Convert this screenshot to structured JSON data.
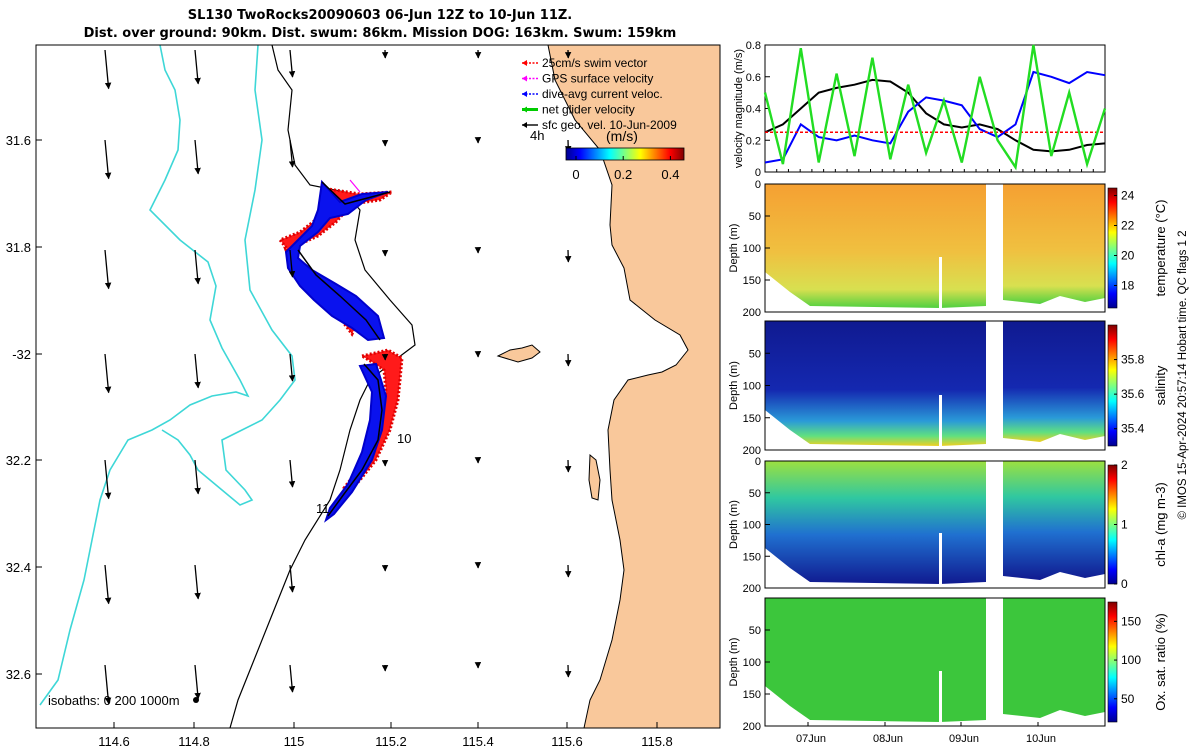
{
  "title": {
    "line1": "SL130 TwoRocks20090603 06-Jun 12Z to 10-Jun 11Z.",
    "line2": "Dist. over ground: 90km. Dist. swum: 86km. Mission DOG: 163km. Swum: 159km"
  },
  "credit": "© IMOS 15-Apr-2024 20:57:14 Hobart time. QC flags 1  2",
  "colors": {
    "coast": "#000000",
    "land": "#f9c89b",
    "isobath200": "#000000",
    "isobath1000": "#3ed7d7",
    "swim": "#ff0000",
    "gps": "#ff00ff",
    "current": "#0000ff",
    "glider": "#00cc00"
  },
  "map": {
    "lon_ticks": [
      "114.6",
      "114.8",
      "115",
      "115.2",
      "115.4",
      "115.6",
      "115.8"
    ],
    "lat_ticks": [
      "31.6",
      "31.8",
      "-32",
      "32.2",
      "32.4",
      "32.6"
    ],
    "legend": [
      {
        "label": "25cm/s swim vector",
        "color": "#ff0000"
      },
      {
        "label": "GPS surface velocity",
        "color": "#ff00ff"
      },
      {
        "label": "dive-avg current veloc.",
        "color": "#0000ff"
      },
      {
        "label": "net glider velocity",
        "color": "#00cc00"
      },
      {
        "label": "sfc geo. vel. 10-Jun-2009",
        "color": "#000000"
      }
    ],
    "colorbar": {
      "unit": "(m/s)",
      "ticks": [
        "0",
        "0.2",
        "0.4"
      ],
      "range": [
        0,
        0.5
      ],
      "prefix": "4h"
    },
    "day_labels": [
      "10",
      "11"
    ],
    "isobath_label": "isobaths: 0   200  1000m"
  },
  "chart_data": [
    {
      "type": "line",
      "name": "velocity",
      "ylabel": "velocity magnitude (m/s)",
      "ylim": [
        0,
        0.8
      ],
      "yticks": [
        "0",
        "0.2",
        "0.4",
        "0.6",
        "0.8"
      ],
      "series": [
        {
          "name": "black",
          "color": "#000000",
          "values": [
            0.25,
            0.3,
            0.4,
            0.5,
            0.53,
            0.55,
            0.58,
            0.57,
            0.5,
            0.37,
            0.3,
            0.28,
            0.3,
            0.27,
            0.2,
            0.14,
            0.13,
            0.14,
            0.17,
            0.18
          ]
        },
        {
          "name": "blue",
          "color": "#0000ff",
          "values": [
            0.06,
            0.08,
            0.3,
            0.22,
            0.2,
            0.23,
            0.2,
            0.18,
            0.38,
            0.47,
            0.45,
            0.42,
            0.27,
            0.22,
            0.3,
            0.63,
            0.6,
            0.56,
            0.63,
            0.61
          ]
        },
        {
          "name": "red-dashed",
          "color": "#ff0000",
          "values": [
            0.25,
            0.25,
            0.25,
            0.25,
            0.25,
            0.25,
            0.25,
            0.25,
            0.25,
            0.25,
            0.25,
            0.25,
            0.25,
            0.25,
            0.25,
            0.25,
            0.25,
            0.25,
            0.25,
            0.25
          ]
        },
        {
          "name": "green",
          "color": "#22dd22",
          "values": [
            0.5,
            0.05,
            0.78,
            0.06,
            0.62,
            0.1,
            0.72,
            0.08,
            0.55,
            0.12,
            0.45,
            0.06,
            0.6,
            0.2,
            0.03,
            0.8,
            0.1,
            0.5,
            0.05,
            0.4
          ]
        }
      ]
    },
    {
      "type": "heatmap",
      "name": "temperature",
      "ylabel": "Depth (m)",
      "clabel": "temperature (°C)",
      "cticks": [
        "18",
        "20",
        "22",
        "24"
      ],
      "yticks": [
        "0",
        "50",
        "100",
        "150",
        "200"
      ]
    },
    {
      "type": "heatmap",
      "name": "salinity",
      "ylabel": "Depth (m)",
      "clabel": "salinity",
      "cticks": [
        "35.4",
        "35.6",
        "35.8"
      ],
      "yticks": [
        "50",
        "100",
        "150",
        "200"
      ]
    },
    {
      "type": "heatmap",
      "name": "chl-a",
      "ylabel": "Depth (m)",
      "clabel": "chl-a (mg m-3)",
      "cticks": [
        "0",
        "1",
        "2"
      ],
      "yticks": [
        "0",
        "50",
        "100",
        "150",
        "200"
      ]
    },
    {
      "type": "heatmap",
      "name": "oxygen",
      "ylabel": "Depth (m)",
      "clabel": "Ox. sat. ratio (%)",
      "cticks": [
        "50",
        "100",
        "150"
      ],
      "yticks": [
        "50",
        "100",
        "150",
        "200"
      ],
      "xticks": [
        "07Jun",
        "08Jun",
        "09Jun",
        "10Jun"
      ]
    }
  ]
}
